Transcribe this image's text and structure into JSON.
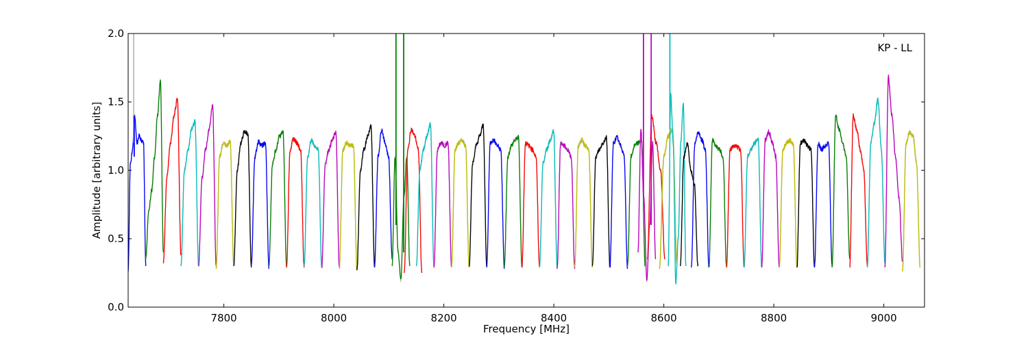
{
  "chart_data": {
    "type": "line",
    "title": "",
    "annotation": "KP - LL",
    "xlabel": "Frequency [MHz]",
    "ylabel": "Amplitude [arbitrary units]",
    "xlim": [
      7626,
      9074
    ],
    "ylim": [
      0.0,
      2.0
    ],
    "xticks": [
      7800,
      8000,
      8200,
      8400,
      8600,
      8800,
      9000
    ],
    "xtick_labels": [
      "7800",
      "8000",
      "8200",
      "8400",
      "8600",
      "8800",
      "9000"
    ],
    "yticks": [
      0.0,
      0.5,
      1.0,
      1.5,
      2.0
    ],
    "ytick_labels": [
      "0.0",
      "0.5",
      "1.0",
      "1.5",
      "2.0"
    ],
    "grid": false,
    "legend": "none",
    "background_color": "#bbbbbb",
    "color_cycle": [
      "#0000ff",
      "#008000",
      "#ff0000",
      "#00bfbf",
      "#bf00bf",
      "#bfbf00",
      "#000000"
    ],
    "channel_width_mhz": 32,
    "series": [
      {
        "start": 7626,
        "values": [
          0.26,
          1.05,
          1.15,
          1.4,
          1.2,
          1.25,
          1.22,
          1.2,
          0.3
        ],
        "color": "#0000ff"
      },
      {
        "start": 7658,
        "values": [
          0.35,
          0.7,
          0.85,
          1.1,
          1.4,
          1.66,
          0.4
        ],
        "color": "#008000"
      },
      {
        "start": 7690,
        "values": [
          0.32,
          0.95,
          1.2,
          1.4,
          1.52,
          0.38
        ],
        "color": "#ff0000"
      },
      {
        "start": 7722,
        "values": [
          0.3,
          1.0,
          1.15,
          1.3,
          1.36,
          0.3
        ],
        "color": "#00bfbf"
      },
      {
        "start": 7754,
        "values": [
          0.3,
          0.95,
          1.15,
          1.3,
          1.47,
          0.3
        ],
        "color": "#bf00bf"
      },
      {
        "start": 7786,
        "values": [
          0.28,
          1.1,
          1.2,
          1.18,
          1.21,
          0.3
        ],
        "color": "#bfbf00"
      },
      {
        "start": 7818,
        "values": [
          0.3,
          1.0,
          1.2,
          1.28,
          1.27,
          0.29
        ],
        "color": "#000000"
      },
      {
        "start": 7850,
        "values": [
          0.3,
          1.1,
          1.21,
          1.18,
          1.2,
          0.28
        ],
        "color": "#0000ff"
      },
      {
        "start": 7882,
        "values": [
          0.3,
          1.05,
          1.15,
          1.25,
          1.28,
          0.29
        ],
        "color": "#008000"
      },
      {
        "start": 7914,
        "values": [
          0.29,
          1.15,
          1.23,
          1.2,
          1.15,
          0.29
        ],
        "color": "#ff0000"
      },
      {
        "start": 7946,
        "values": [
          0.3,
          1.1,
          1.22,
          1.18,
          1.15,
          0.29
        ],
        "color": "#00bfbf"
      },
      {
        "start": 7978,
        "values": [
          0.29,
          1.05,
          1.15,
          1.22,
          1.28,
          0.29
        ],
        "color": "#bf00bf"
      },
      {
        "start": 8010,
        "values": [
          0.28,
          1.15,
          1.2,
          1.18,
          1.18,
          0.27
        ],
        "color": "#bfbf00"
      },
      {
        "start": 8042,
        "values": [
          0.27,
          1.0,
          1.15,
          1.25,
          1.33,
          0.29
        ],
        "color": "#000000"
      },
      {
        "start": 8074,
        "values": [
          0.29,
          1.1,
          1.3,
          1.2,
          1.1,
          0.35
        ],
        "color": "#0000ff"
      },
      {
        "start": 8106,
        "values": [
          0.3,
          1.1,
          0.4,
          0.2,
          0.8,
          1.1,
          0.3
        ],
        "color": "#008000"
      },
      {
        "start": 8128,
        "values": [
          0.25,
          1.15,
          1.3,
          1.25,
          1.15,
          0.25
        ],
        "color": "#ff0000"
      },
      {
        "start": 8150,
        "values": [
          0.3,
          1.0,
          1.15,
          1.25,
          1.34,
          0.29
        ],
        "color": "#00bfbf"
      },
      {
        "start": 8182,
        "values": [
          0.29,
          1.15,
          1.2,
          1.18,
          1.2,
          0.29
        ],
        "color": "#bf00bf"
      },
      {
        "start": 8214,
        "values": [
          0.29,
          1.15,
          1.2,
          1.22,
          1.18,
          0.29
        ],
        "color": "#bfbf00"
      },
      {
        "start": 8246,
        "values": [
          0.3,
          1.05,
          1.18,
          1.25,
          1.33,
          0.29
        ],
        "color": "#000000"
      },
      {
        "start": 8278,
        "values": [
          0.29,
          1.2,
          1.22,
          1.18,
          1.15,
          0.28
        ],
        "color": "#0000ff"
      },
      {
        "start": 8310,
        "values": [
          0.29,
          1.1,
          1.18,
          1.22,
          1.24,
          0.29
        ],
        "color": "#008000"
      },
      {
        "start": 8342,
        "values": [
          0.29,
          1.2,
          1.18,
          1.15,
          1.1,
          0.29
        ],
        "color": "#ff0000"
      },
      {
        "start": 8374,
        "values": [
          0.29,
          1.05,
          1.15,
          1.22,
          1.29,
          0.29
        ],
        "color": "#00bfbf"
      },
      {
        "start": 8406,
        "values": [
          0.28,
          1.2,
          1.18,
          1.15,
          1.1,
          0.28
        ],
        "color": "#bf00bf"
      },
      {
        "start": 8438,
        "values": [
          0.29,
          1.18,
          1.22,
          1.18,
          1.15,
          0.29
        ],
        "color": "#bfbf00"
      },
      {
        "start": 8470,
        "values": [
          0.3,
          1.1,
          1.15,
          1.2,
          1.24,
          0.29
        ],
        "color": "#000000"
      },
      {
        "start": 8502,
        "values": [
          0.29,
          1.2,
          1.24,
          1.18,
          1.12,
          0.28
        ],
        "color": "#0000ff"
      },
      {
        "start": 8534,
        "values": [
          0.3,
          1.1,
          1.18,
          1.2,
          1.22,
          0.3
        ],
        "color": "#008000"
      },
      {
        "start": 8553,
        "values": [
          0.4,
          1.3,
          0.8,
          0.2,
          0.6,
          1.2,
          0.35
        ],
        "color": "#bf00bf"
      },
      {
        "start": 8570,
        "values": [
          0.35,
          1.4,
          1.2,
          1.0,
          0.35
        ],
        "color": "#ff0000"
      },
      {
        "start": 8592,
        "values": [
          0.28,
          1.1,
          1.25,
          1.3,
          0.3
        ],
        "color": "#bfbf00"
      },
      {
        "start": 8608,
        "values": [
          0.3,
          1.55,
          1.2,
          0.18,
          0.5,
          1.2,
          1.5,
          0.3
        ],
        "color": "#00bfbf"
      },
      {
        "start": 8630,
        "values": [
          0.3,
          1.1,
          1.2,
          1.0,
          0.9,
          0.3
        ],
        "color": "#000000"
      },
      {
        "start": 8650,
        "values": [
          0.29,
          1.2,
          1.28,
          1.22,
          1.15,
          0.29
        ],
        "color": "#0000ff"
      },
      {
        "start": 8682,
        "values": [
          0.29,
          1.22,
          1.18,
          1.15,
          1.1,
          0.29
        ],
        "color": "#008000"
      },
      {
        "start": 8714,
        "values": [
          0.29,
          1.15,
          1.18,
          1.17,
          1.15,
          0.29
        ],
        "color": "#ff0000"
      },
      {
        "start": 8746,
        "values": [
          0.29,
          1.1,
          1.15,
          1.2,
          1.23,
          0.29
        ],
        "color": "#00bfbf"
      },
      {
        "start": 8778,
        "values": [
          0.29,
          1.22,
          1.28,
          1.2,
          1.1,
          0.29
        ],
        "color": "#bf00bf"
      },
      {
        "start": 8810,
        "values": [
          0.29,
          1.15,
          1.2,
          1.22,
          1.18,
          0.29
        ],
        "color": "#bfbf00"
      },
      {
        "start": 8842,
        "values": [
          0.29,
          1.2,
          1.22,
          1.18,
          1.15,
          0.29
        ],
        "color": "#000000"
      },
      {
        "start": 8874,
        "values": [
          0.29,
          1.2,
          1.15,
          1.18,
          1.2,
          0.29
        ],
        "color": "#0000ff"
      },
      {
        "start": 8906,
        "values": [
          0.29,
          1.4,
          1.3,
          1.2,
          1.1,
          0.35
        ],
        "color": "#008000"
      },
      {
        "start": 8938,
        "values": [
          0.29,
          1.4,
          1.3,
          1.15,
          1.0,
          0.3
        ],
        "color": "#ff0000"
      },
      {
        "start": 8970,
        "values": [
          0.29,
          1.2,
          1.35,
          1.52,
          1.15,
          0.32
        ],
        "color": "#00bfbf"
      },
      {
        "start": 9002,
        "values": [
          0.29,
          1.68,
          1.4,
          1.1,
          0.8,
          0.34
        ],
        "color": "#bf00bf"
      },
      {
        "start": 9034,
        "values": [
          0.26,
          1.2,
          1.28,
          1.25,
          1.05,
          0.29
        ],
        "color": "#bfbf00"
      }
    ],
    "spikes": [
      {
        "x": 7636,
        "y_from": 1.2,
        "y_to": 2.0,
        "color": "#bbbbbb"
      },
      {
        "x": 7637,
        "y_from": 1.1,
        "y_to": 1.4,
        "color": "#0000ff"
      },
      {
        "x": 8113,
        "y_from": 0.6,
        "y_to": 2.0,
        "color": "#008000"
      },
      {
        "x": 8127,
        "y_from": 0.4,
        "y_to": 2.0,
        "color": "#008000"
      },
      {
        "x": 8563,
        "y_from": 0.8,
        "y_to": 2.0,
        "color": "#bf00bf"
      },
      {
        "x": 8577,
        "y_from": 0.6,
        "y_to": 2.0,
        "color": "#bf00bf"
      },
      {
        "x": 8611,
        "y_from": 1.3,
        "y_to": 2.0,
        "color": "#00bfbf"
      }
    ]
  }
}
